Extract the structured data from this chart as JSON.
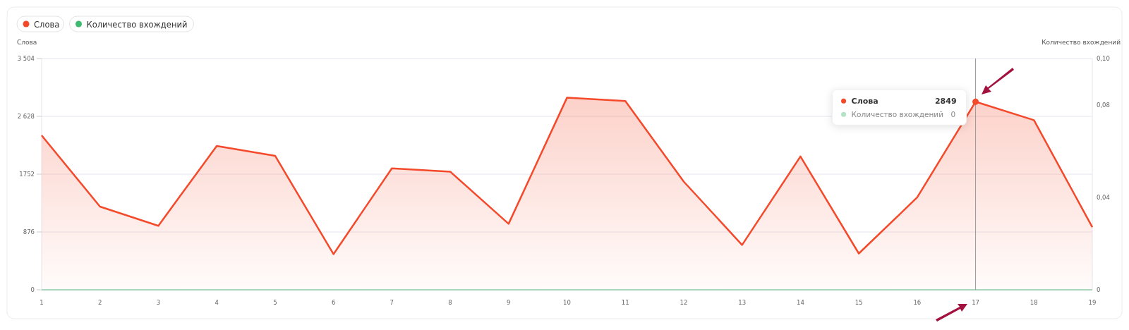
{
  "chart_data": {
    "type": "area",
    "ylabel": "Слова",
    "y2label": "Количество вхождений",
    "x": [
      1,
      2,
      3,
      4,
      5,
      6,
      7,
      8,
      9,
      10,
      11,
      12,
      13,
      14,
      15,
      16,
      17,
      18,
      19
    ],
    "xlim": [
      1,
      19
    ],
    "xticks": [
      1,
      2,
      3,
      4,
      5,
      6,
      7,
      8,
      9,
      10,
      11,
      12,
      13,
      14,
      15,
      16,
      17,
      18,
      19
    ],
    "ylim": [
      0,
      3504
    ],
    "yticks": [
      0,
      {
        "value": 876,
        "label": "876"
      },
      {
        "value": 1752,
        "label": "1752"
      },
      {
        "value": 2628,
        "label": "2 628"
      },
      {
        "value": 3504,
        "label": "3 504"
      }
    ],
    "y2lim": [
      0,
      0.1
    ],
    "y2ticks": [
      {
        "value": 0,
        "label": "0"
      },
      {
        "value": 0.04,
        "label": "0,04"
      },
      {
        "value": 0.08,
        "label": "0,08"
      },
      {
        "value": 0.1,
        "label": "0,10"
      }
    ],
    "series": [
      {
        "name": "Слова",
        "color": "#f4492a",
        "values": [
          2340,
          1260,
          970,
          2180,
          2030,
          540,
          1840,
          1790,
          1000,
          2910,
          2860,
          1640,
          680,
          2020,
          550,
          1400,
          2849,
          2570,
          950
        ]
      },
      {
        "name": "Количество вхождений",
        "type": "line",
        "axis": "y2",
        "color": "#3dba6f",
        "values": [
          0,
          0,
          0,
          0,
          0,
          0,
          0,
          0,
          0,
          0,
          0,
          0,
          0,
          0,
          0,
          0,
          0,
          0,
          0
        ]
      }
    ],
    "ref_lines": [
      {
        "axis": "x",
        "value": 17,
        "color": "#9a9a9a"
      }
    ],
    "annotations": [
      "Слова",
      "2849",
      "Количество вхождений",
      "0"
    ],
    "grid": "y",
    "legend": "top left",
    "marker": "none",
    "line_style": "solid"
  }
}
